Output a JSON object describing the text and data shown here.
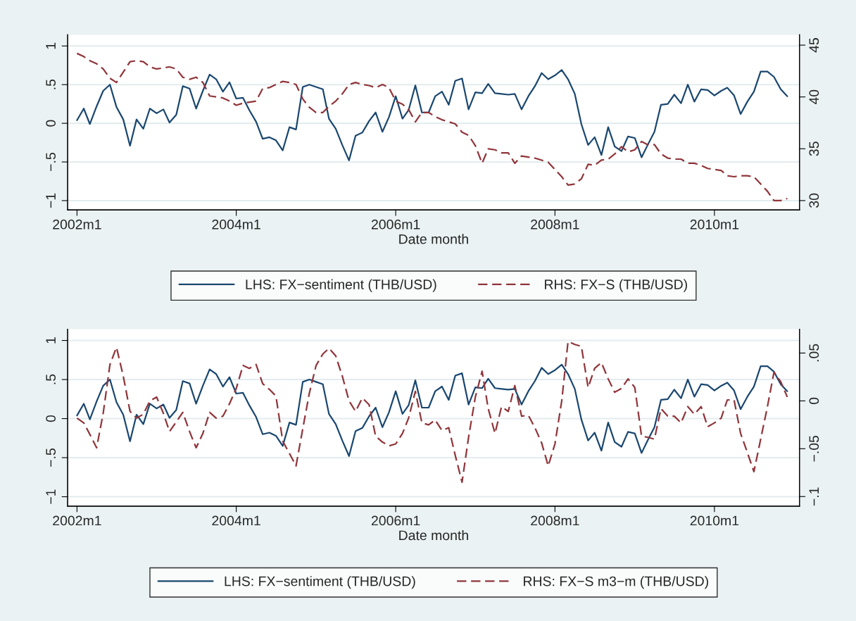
{
  "chart_data": [
    {
      "type": "line",
      "xlabel": "Date month",
      "legend": "bottom",
      "grid": "y",
      "x": [
        "2002-01",
        "2002-02",
        "2002-03",
        "2002-04",
        "2002-05",
        "2002-06",
        "2002-07",
        "2002-08",
        "2002-09",
        "2002-10",
        "2002-11",
        "2002-12",
        "2003-01",
        "2003-02",
        "2003-03",
        "2003-04",
        "2003-05",
        "2003-06",
        "2003-07",
        "2003-08",
        "2003-09",
        "2003-10",
        "2003-11",
        "2003-12",
        "2004-01",
        "2004-02",
        "2004-03",
        "2004-04",
        "2004-05",
        "2004-06",
        "2004-07",
        "2004-08",
        "2004-09",
        "2004-10",
        "2004-11",
        "2004-12",
        "2005-01",
        "2005-02",
        "2005-03",
        "2005-04",
        "2005-05",
        "2005-06",
        "2005-07",
        "2005-08",
        "2005-09",
        "2005-10",
        "2005-11",
        "2005-12",
        "2006-01",
        "2006-02",
        "2006-03",
        "2006-04",
        "2006-05",
        "2006-06",
        "2006-07",
        "2006-08",
        "2006-09",
        "2006-10",
        "2006-11",
        "2006-12",
        "2007-01",
        "2007-02",
        "2007-03",
        "2007-04",
        "2007-05",
        "2007-06",
        "2007-07",
        "2007-08",
        "2007-09",
        "2007-10",
        "2007-11",
        "2007-12",
        "2008-01",
        "2008-02",
        "2008-03",
        "2008-04",
        "2008-05",
        "2008-06",
        "2008-07",
        "2008-08",
        "2008-09",
        "2008-10",
        "2008-11",
        "2008-12",
        "2009-01",
        "2009-02",
        "2009-03",
        "2009-04",
        "2009-05",
        "2009-06",
        "2009-07",
        "2009-08",
        "2009-09",
        "2009-10",
        "2009-11",
        "2009-12",
        "2010-01",
        "2010-02",
        "2010-03",
        "2010-04",
        "2010-05",
        "2010-06",
        "2010-07",
        "2010-08",
        "2010-09",
        "2010-10",
        "2010-11",
        "2010-12"
      ],
      "xlim": [
        "2001-11-19",
        "2011-01-26"
      ],
      "xticks": [
        {
          "value": "2002-01",
          "label": "2002m1"
        },
        {
          "value": "2004-01",
          "label": "2004m1"
        },
        {
          "value": "2006-01",
          "label": "2006m1"
        },
        {
          "value": "2008-01",
          "label": "2008m1"
        },
        {
          "value": "2010-01",
          "label": "2010m1"
        }
      ],
      "ylim": [
        -1.12,
        1.145
      ],
      "yticks": [
        {
          "value": -1,
          "label": "−1"
        },
        {
          "value": -0.5,
          "label": "−.5"
        },
        0,
        {
          "value": 0.5,
          "label": ".5"
        },
        1
      ],
      "y2lim": [
        29.1,
        46.0
      ],
      "y2ticks": [
        30,
        35,
        40,
        45
      ],
      "series": [
        {
          "name": "LHS: FX−sentiment (THB/USD)",
          "color": "#1a476f",
          "line_style": "solid",
          "values": [
            0.04,
            0.19,
            -0.01,
            0.22,
            0.42,
            0.5,
            0.21,
            0.05,
            -0.29,
            0.05,
            -0.07,
            0.19,
            0.13,
            0.18,
            0.01,
            0.11,
            0.48,
            0.45,
            0.19,
            0.42,
            0.63,
            0.57,
            0.41,
            0.53,
            0.32,
            0.33,
            0.17,
            0.02,
            -0.2,
            -0.18,
            -0.22,
            -0.35,
            -0.05,
            -0.08,
            0.47,
            0.5,
            0.47,
            0.44,
            0.06,
            -0.07,
            -0.28,
            -0.48,
            -0.16,
            -0.12,
            0.03,
            0.14,
            -0.11,
            0.08,
            0.35,
            0.06,
            0.17,
            0.49,
            0.14,
            0.14,
            0.35,
            0.41,
            0.24,
            0.55,
            0.58,
            0.18,
            0.4,
            0.39,
            0.51,
            0.39,
            0.38,
            0.37,
            0.38,
            0.18,
            0.35,
            0.48,
            0.65,
            0.57,
            0.62,
            0.69,
            0.57,
            0.38,
            -0.01,
            -0.28,
            -0.18,
            -0.41,
            -0.05,
            -0.3,
            -0.36,
            -0.17,
            -0.19,
            -0.44,
            -0.28,
            -0.11,
            0.24,
            0.25,
            0.37,
            0.26,
            0.5,
            0.28,
            0.44,
            0.43,
            0.36,
            0.42,
            0.46,
            0.36,
            0.12,
            0.28,
            0.41,
            0.67,
            0.67,
            0.6,
            0.44,
            0.35
          ]
        },
        {
          "name": "RHS: FX−S (THB/USD)",
          "color": "#90353b",
          "line_style": "dashed",
          "axis": "y2",
          "values": [
            44.2,
            43.9,
            43.5,
            43.2,
            42.7,
            41.8,
            41.4,
            42.4,
            43.4,
            43.5,
            43.4,
            42.9,
            42.7,
            42.8,
            42.9,
            42.7,
            41.9,
            41.7,
            41.9,
            41.4,
            40.1,
            40.0,
            39.9,
            39.6,
            39.2,
            39.4,
            39.5,
            39.6,
            40.8,
            40.9,
            41.2,
            41.5,
            41.4,
            41.2,
            39.8,
            39.0,
            38.5,
            38.5,
            39.1,
            39.6,
            40.3,
            41.2,
            41.4,
            41.2,
            41.1,
            40.9,
            41.2,
            40.9,
            39.6,
            39.3,
            38.8,
            37.6,
            38.5,
            38.5,
            38.1,
            37.8,
            37.6,
            37.4,
            36.6,
            36.3,
            35.3,
            33.6,
            35.0,
            34.9,
            34.6,
            34.6,
            33.6,
            34.3,
            34.2,
            34.1,
            33.9,
            33.7,
            33.0,
            32.3,
            31.5,
            31.6,
            32.1,
            33.5,
            33.4,
            33.9,
            34.0,
            34.5,
            35.2,
            34.7,
            34.9,
            35.7,
            35.4,
            35.4,
            34.5,
            34.1,
            34.0,
            34.0,
            33.6,
            33.6,
            33.4,
            33.1,
            33.0,
            32.9,
            32.4,
            32.3,
            32.4,
            32.4,
            32.3,
            31.6,
            30.9,
            30.0,
            30.0,
            30.2
          ]
        }
      ]
    },
    {
      "type": "line",
      "xlabel": "Date month",
      "legend": "bottom",
      "grid": "y",
      "x": [
        "2002-01",
        "2002-02",
        "2002-03",
        "2002-04",
        "2002-05",
        "2002-06",
        "2002-07",
        "2002-08",
        "2002-09",
        "2002-10",
        "2002-11",
        "2002-12",
        "2003-01",
        "2003-02",
        "2003-03",
        "2003-04",
        "2003-05",
        "2003-06",
        "2003-07",
        "2003-08",
        "2003-09",
        "2003-10",
        "2003-11",
        "2003-12",
        "2004-01",
        "2004-02",
        "2004-03",
        "2004-04",
        "2004-05",
        "2004-06",
        "2004-07",
        "2004-08",
        "2004-09",
        "2004-10",
        "2004-11",
        "2004-12",
        "2005-01",
        "2005-02",
        "2005-03",
        "2005-04",
        "2005-05",
        "2005-06",
        "2005-07",
        "2005-08",
        "2005-09",
        "2005-10",
        "2005-11",
        "2005-12",
        "2006-01",
        "2006-02",
        "2006-03",
        "2006-04",
        "2006-05",
        "2006-06",
        "2006-07",
        "2006-08",
        "2006-09",
        "2006-10",
        "2006-11",
        "2006-12",
        "2007-01",
        "2007-02",
        "2007-03",
        "2007-04",
        "2007-05",
        "2007-06",
        "2007-07",
        "2007-08",
        "2007-09",
        "2007-10",
        "2007-11",
        "2007-12",
        "2008-01",
        "2008-02",
        "2008-03",
        "2008-04",
        "2008-05",
        "2008-06",
        "2008-07",
        "2008-08",
        "2008-09",
        "2008-10",
        "2008-11",
        "2008-12",
        "2009-01",
        "2009-02",
        "2009-03",
        "2009-04",
        "2009-05",
        "2009-06",
        "2009-07",
        "2009-08",
        "2009-09",
        "2009-10",
        "2009-11",
        "2009-12",
        "2010-01",
        "2010-02",
        "2010-03",
        "2010-04",
        "2010-05",
        "2010-06",
        "2010-07",
        "2010-08",
        "2010-09",
        "2010-10",
        "2010-11",
        "2010-12"
      ],
      "xlim": [
        "2001-11-19",
        "2011-01-26"
      ],
      "xticks": [
        {
          "value": "2002-01",
          "label": "2002m1"
        },
        {
          "value": "2004-01",
          "label": "2004m1"
        },
        {
          "value": "2006-01",
          "label": "2006m1"
        },
        {
          "value": "2008-01",
          "label": "2008m1"
        },
        {
          "value": "2010-01",
          "label": "2010m1"
        }
      ],
      "ylim": [
        -1.12,
        1.145
      ],
      "yticks": [
        {
          "value": -1,
          "label": "−1"
        },
        {
          "value": -0.5,
          "label": "−.5"
        },
        0,
        {
          "value": 0.5,
          "label": ".5"
        },
        1
      ],
      "y2lim": [
        -0.11,
        0.075
      ],
      "y2ticks": [
        {
          "value": -0.1,
          "label": "−.1"
        },
        {
          "value": -0.05,
          "label": "−.05"
        },
        0,
        {
          "value": 0.05,
          "label": ".05"
        }
      ],
      "series": [
        {
          "name": "LHS: FX−sentiment (THB/USD)",
          "color": "#1a476f",
          "line_style": "solid",
          "values": [
            0.04,
            0.19,
            -0.01,
            0.22,
            0.42,
            0.5,
            0.21,
            0.05,
            -0.29,
            0.05,
            -0.07,
            0.19,
            0.13,
            0.18,
            0.01,
            0.11,
            0.48,
            0.45,
            0.19,
            0.42,
            0.63,
            0.57,
            0.41,
            0.53,
            0.32,
            0.33,
            0.17,
            0.02,
            -0.2,
            -0.18,
            -0.22,
            -0.35,
            -0.05,
            -0.08,
            0.47,
            0.5,
            0.47,
            0.44,
            0.06,
            -0.07,
            -0.28,
            -0.48,
            -0.16,
            -0.12,
            0.03,
            0.14,
            -0.11,
            0.08,
            0.35,
            0.06,
            0.17,
            0.49,
            0.14,
            0.14,
            0.35,
            0.41,
            0.24,
            0.55,
            0.58,
            0.18,
            0.4,
            0.39,
            0.51,
            0.39,
            0.38,
            0.37,
            0.38,
            0.18,
            0.35,
            0.48,
            0.65,
            0.57,
            0.62,
            0.69,
            0.57,
            0.38,
            -0.01,
            -0.28,
            -0.18,
            -0.41,
            -0.05,
            -0.3,
            -0.36,
            -0.17,
            -0.19,
            -0.44,
            -0.28,
            -0.11,
            0.24,
            0.25,
            0.37,
            0.26,
            0.5,
            0.28,
            0.44,
            0.43,
            0.36,
            0.42,
            0.46,
            0.36,
            0.12,
            0.28,
            0.41,
            0.67,
            0.67,
            0.6,
            0.44,
            0.35
          ]
        },
        {
          "name": "RHS: FX−S m3−m (THB/USD)",
          "color": "#90353b",
          "line_style": "dashed",
          "axis": "y2",
          "values": [
            -0.018,
            -0.023,
            -0.035,
            -0.049,
            -0.013,
            0.038,
            0.056,
            0.026,
            -0.011,
            -0.018,
            -0.014,
            0.0,
            0.004,
            -0.013,
            -0.032,
            -0.022,
            -0.012,
            -0.032,
            -0.049,
            -0.034,
            -0.012,
            -0.018,
            -0.016,
            -0.003,
            0.013,
            0.037,
            0.034,
            0.038,
            0.018,
            0.012,
            0.005,
            -0.042,
            -0.055,
            -0.068,
            -0.029,
            0.008,
            0.037,
            0.049,
            0.055,
            0.047,
            0.026,
            0.0,
            -0.011,
            0.003,
            -0.004,
            -0.037,
            -0.043,
            -0.047,
            -0.045,
            -0.034,
            -0.018,
            0.01,
            -0.023,
            -0.025,
            -0.02,
            -0.031,
            -0.028,
            -0.057,
            -0.085,
            -0.038,
            0.004,
            0.031,
            -0.008,
            -0.034,
            -0.006,
            -0.011,
            0.016,
            -0.016,
            -0.015,
            -0.028,
            -0.044,
            -0.068,
            -0.045,
            0.0,
            0.062,
            0.059,
            0.057,
            0.014,
            0.034,
            0.04,
            0.023,
            0.009,
            0.013,
            0.023,
            0.014,
            -0.037,
            -0.038,
            -0.04,
            -0.008,
            -0.016,
            -0.016,
            -0.023,
            -0.006,
            -0.014,
            -0.006,
            -0.027,
            -0.023,
            -0.018,
            0.001,
            0.001,
            -0.034,
            -0.054,
            -0.074,
            -0.04,
            -0.006,
            0.03,
            0.02,
            0.004
          ]
        }
      ]
    }
  ]
}
